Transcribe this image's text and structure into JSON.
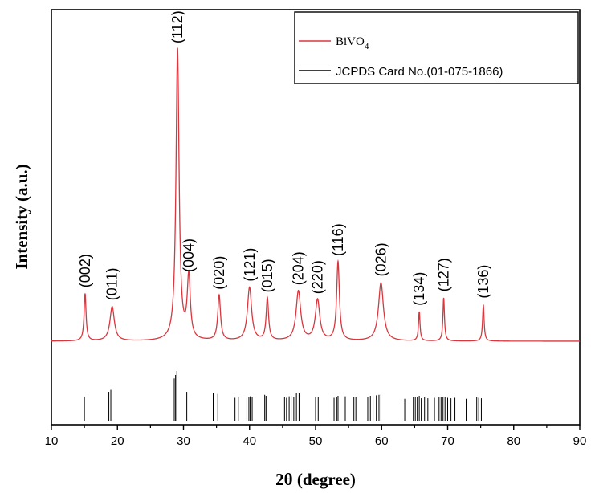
{
  "chart_data": {
    "type": "line",
    "xlabel": "2θ (degree)",
    "ylabel": "Intensity (a.u.)",
    "xlim": [
      10,
      90
    ],
    "x_ticks": [
      10,
      20,
      30,
      40,
      50,
      60,
      70,
      80,
      90
    ],
    "grid": false,
    "legend_position": "top-right",
    "colors": {
      "sample": "#d9363e",
      "reference": "#000000",
      "axis": "#000000"
    },
    "series": [
      {
        "name": "BiVO",
        "name_subscript": "4",
        "peaks": [
          {
            "x": 15.1,
            "y": 0.162,
            "w": 0.18,
            "label": "(002)"
          },
          {
            "x": 19.2,
            "y": 0.118,
            "w": 0.4,
            "label": "(011)"
          },
          {
            "x": 29.1,
            "y": 1.0,
            "w": 0.28,
            "label": "(112)"
          },
          {
            "x": 30.8,
            "y": 0.215,
            "w": 0.28,
            "label": "(004)"
          },
          {
            "x": 35.4,
            "y": 0.155,
            "w": 0.25,
            "label": "(020)"
          },
          {
            "x": 40.0,
            "y": 0.183,
            "w": 0.38,
            "label": "(121)"
          },
          {
            "x": 42.7,
            "y": 0.145,
            "w": 0.22,
            "label": "(015)"
          },
          {
            "x": 47.4,
            "y": 0.17,
            "w": 0.42,
            "label": "(204)"
          },
          {
            "x": 50.3,
            "y": 0.14,
            "w": 0.4,
            "label": "(220)"
          },
          {
            "x": 53.4,
            "y": 0.27,
            "w": 0.25,
            "label": "(116)"
          },
          {
            "x": 59.9,
            "y": 0.2,
            "w": 0.45,
            "label": "(026)"
          },
          {
            "x": 65.7,
            "y": 0.1,
            "w": 0.14,
            "label": "(134)"
          },
          {
            "x": 69.4,
            "y": 0.148,
            "w": 0.14,
            "label": "(127)"
          },
          {
            "x": 75.4,
            "y": 0.125,
            "w": 0.14,
            "label": "(136)"
          }
        ]
      },
      {
        "name": "JCPDS Card No.(01-075-1866)",
        "type": "stick",
        "sticks": [
          [
            15.0,
            0.48
          ],
          [
            18.7,
            0.58
          ],
          [
            19.0,
            0.62
          ],
          [
            28.6,
            0.85
          ],
          [
            28.8,
            0.92
          ],
          [
            29.0,
            1.0
          ],
          [
            30.5,
            0.58
          ],
          [
            34.5,
            0.55
          ],
          [
            35.2,
            0.54
          ],
          [
            37.8,
            0.46
          ],
          [
            38.3,
            0.47
          ],
          [
            39.6,
            0.46
          ],
          [
            39.9,
            0.48
          ],
          [
            40.1,
            0.49
          ],
          [
            40.4,
            0.47
          ],
          [
            42.3,
            0.52
          ],
          [
            42.5,
            0.5
          ],
          [
            45.3,
            0.47
          ],
          [
            45.6,
            0.46
          ],
          [
            46.0,
            0.49
          ],
          [
            46.3,
            0.5
          ],
          [
            46.7,
            0.48
          ],
          [
            47.1,
            0.55
          ],
          [
            47.5,
            0.56
          ],
          [
            50.0,
            0.48
          ],
          [
            50.4,
            0.47
          ],
          [
            52.8,
            0.46
          ],
          [
            53.2,
            0.47
          ],
          [
            53.4,
            0.5
          ],
          [
            54.5,
            0.49
          ],
          [
            55.8,
            0.48
          ],
          [
            56.1,
            0.47
          ],
          [
            57.9,
            0.48
          ],
          [
            58.3,
            0.5
          ],
          [
            58.7,
            0.51
          ],
          [
            59.2,
            0.51
          ],
          [
            59.6,
            0.52
          ],
          [
            59.9,
            0.53
          ],
          [
            63.5,
            0.44
          ],
          [
            64.8,
            0.48
          ],
          [
            65.1,
            0.48
          ],
          [
            65.4,
            0.47
          ],
          [
            65.7,
            0.5
          ],
          [
            66.0,
            0.45
          ],
          [
            66.5,
            0.47
          ],
          [
            67.0,
            0.45
          ],
          [
            68.0,
            0.46
          ],
          [
            68.7,
            0.47
          ],
          [
            69.0,
            0.48
          ],
          [
            69.3,
            0.48
          ],
          [
            69.6,
            0.47
          ],
          [
            70.0,
            0.46
          ],
          [
            70.5,
            0.45
          ],
          [
            71.1,
            0.46
          ],
          [
            72.8,
            0.44
          ],
          [
            74.4,
            0.47
          ],
          [
            74.7,
            0.46
          ],
          [
            75.1,
            0.45
          ]
        ]
      }
    ]
  }
}
